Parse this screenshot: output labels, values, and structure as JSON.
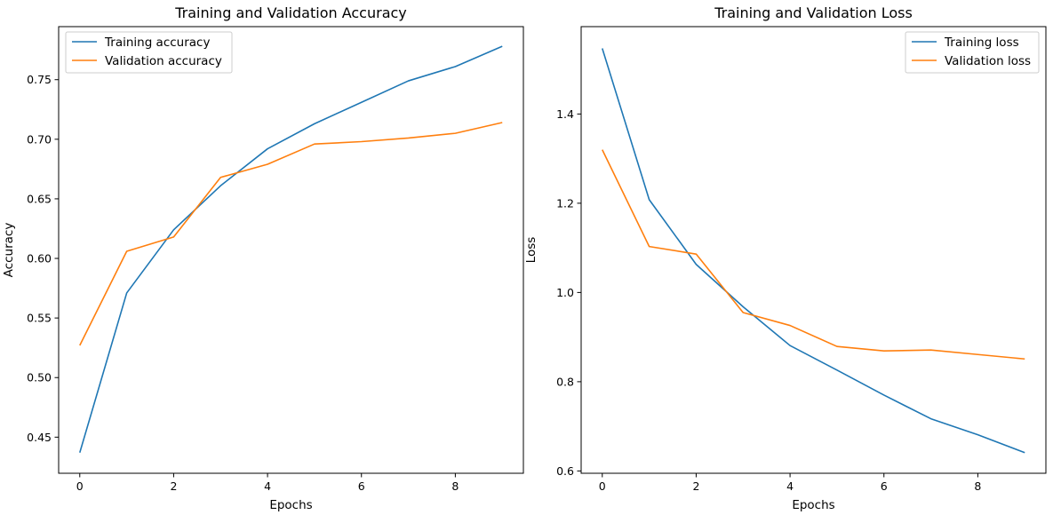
{
  "colors": {
    "training": "#1f77b4",
    "validation": "#ff7f0e"
  },
  "chart_data": [
    {
      "type": "line",
      "title": "Training and Validation Accuracy",
      "xlabel": "Epochs",
      "ylabel": "Accuracy",
      "x": [
        0,
        1,
        2,
        3,
        4,
        5,
        6,
        7,
        8,
        9
      ],
      "xlim": [
        -0.45,
        9.45
      ],
      "ylim": [
        0.4197,
        0.7945
      ],
      "xticks": [
        0,
        2,
        4,
        6,
        8
      ],
      "yticks": [
        0.45,
        0.5,
        0.55,
        0.6,
        0.65,
        0.7,
        0.75
      ],
      "ytick_labels": [
        "0.45",
        "0.50",
        "0.55",
        "0.60",
        "0.65",
        "0.70",
        "0.75"
      ],
      "legend_position": "upper-left",
      "grid": false,
      "series": [
        {
          "name": "Training accuracy",
          "color": "training",
          "values": [
            0.437,
            0.571,
            0.624,
            0.661,
            0.692,
            0.713,
            0.731,
            0.749,
            0.761,
            0.778
          ]
        },
        {
          "name": "Validation accuracy",
          "color": "validation",
          "values": [
            0.527,
            0.606,
            0.618,
            0.668,
            0.679,
            0.696,
            0.698,
            0.701,
            0.705,
            0.714
          ]
        }
      ]
    },
    {
      "type": "line",
      "title": "Training and Validation Loss",
      "xlabel": "Epochs",
      "ylabel": "Loss",
      "x": [
        0,
        1,
        2,
        3,
        4,
        5,
        6,
        7,
        8,
        9
      ],
      "xlim": [
        -0.45,
        9.45
      ],
      "ylim": [
        0.5948,
        1.5958
      ],
      "xticks": [
        0,
        2,
        4,
        6,
        8
      ],
      "yticks": [
        0.6,
        0.8,
        1.0,
        1.2,
        1.4
      ],
      "ytick_labels": [
        "0.6",
        "0.8",
        "1.0",
        "1.2",
        "1.4"
      ],
      "legend_position": "upper-right",
      "grid": false,
      "series": [
        {
          "name": "Training loss",
          "color": "training",
          "values": [
            1.547,
            1.208,
            1.063,
            0.968,
            0.881,
            0.826,
            0.77,
            0.717,
            0.681,
            0.641
          ]
        },
        {
          "name": "Validation loss",
          "color": "validation",
          "values": [
            1.32,
            1.103,
            1.086,
            0.955,
            0.926,
            0.879,
            0.869,
            0.871,
            0.861,
            0.851
          ]
        }
      ]
    }
  ]
}
